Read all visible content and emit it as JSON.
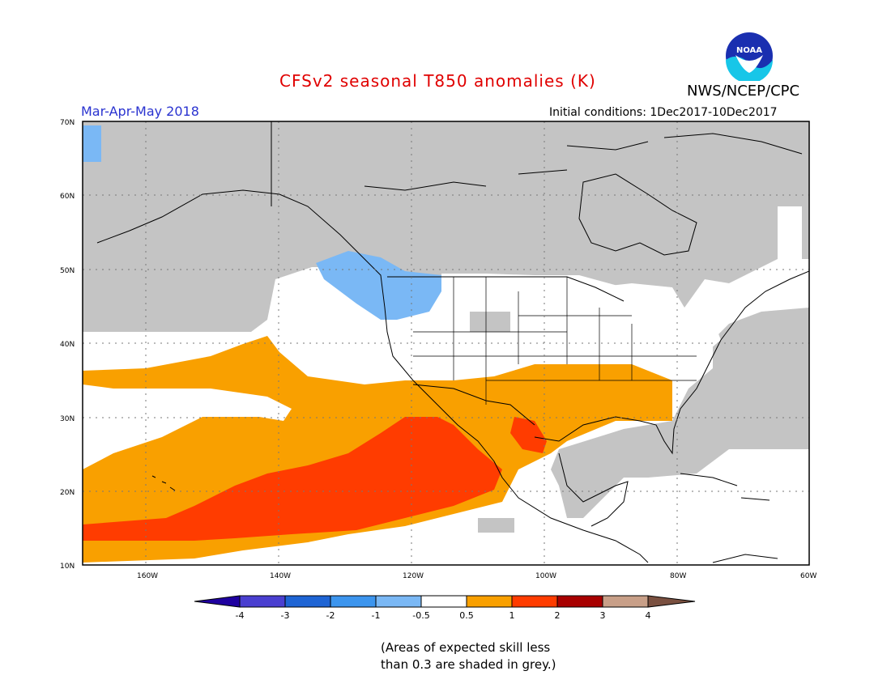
{
  "header": {
    "title": "CFSv2 seasonal T850 anomalies (K)",
    "agency": "NWS/NCEP/CPC",
    "season": "Mar-Apr-May 2018",
    "initial_conditions": "Initial conditions: 1Dec2017-10Dec2017",
    "logo_text": "NOAA"
  },
  "map": {
    "lat_labels": [
      "70N",
      "60N",
      "50N",
      "40N",
      "30N",
      "20N",
      "10N"
    ],
    "lon_labels": [
      "160W",
      "140W",
      "120W",
      "100W",
      "80W",
      "60W"
    ],
    "colors": {
      "grey": "#c4c4c4",
      "blue_light": "#7ab8f5",
      "orange": "#f9a000",
      "red_orange": "#ff3c00",
      "white": "#ffffff"
    }
  },
  "colorbar": {
    "labels": [
      "-4",
      "-3",
      "-2",
      "-1",
      "-0.5",
      "0.5",
      "1",
      "2",
      "3",
      "4"
    ],
    "colors": [
      "#1f00a0",
      "#4a3fd0",
      "#1e64d4",
      "#3c95ee",
      "#7ab8f5",
      "#ffffff",
      "#f9a000",
      "#ff3c00",
      "#a80000",
      "#c89f88",
      "#7a5040"
    ]
  },
  "footnote": {
    "line1": "(Areas of expected skill less",
    "line2": "than 0.3 are shaded in grey.)"
  }
}
